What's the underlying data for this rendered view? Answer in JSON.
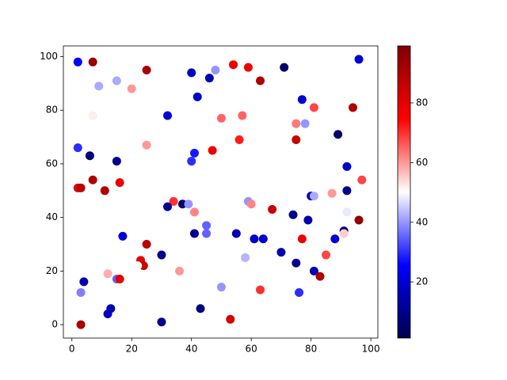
{
  "chart_data": {
    "type": "scatter",
    "colormap": "seismic",
    "x": [
      2,
      7,
      9,
      15,
      20,
      25,
      7,
      32,
      40,
      42,
      46,
      48,
      54,
      59,
      63,
      71,
      96,
      77,
      81,
      78,
      75,
      94,
      50,
      57,
      56,
      75,
      89,
      2,
      25,
      47,
      6,
      15,
      40,
      41,
      92,
      7,
      2,
      3,
      11,
      16,
      92,
      97,
      59,
      60,
      34,
      37,
      39,
      32,
      41,
      87,
      80,
      81,
      92,
      67,
      74,
      79,
      96,
      45,
      91,
      91,
      17,
      41,
      45,
      55,
      61,
      64,
      77,
      88,
      25,
      30,
      58,
      70,
      85,
      75,
      23,
      24,
      22,
      36,
      81,
      12,
      15,
      16,
      83,
      4,
      50,
      63,
      3,
      76,
      13,
      12,
      43,
      30,
      34,
      53,
      3
    ],
    "values": [
      98,
      98,
      89,
      91,
      88,
      95,
      78,
      78,
      94,
      85,
      92,
      95,
      97,
      96,
      91,
      96,
      99,
      84,
      81,
      75,
      75,
      81,
      77,
      78,
      69,
      69,
      71,
      66,
      67,
      65,
      63,
      61,
      61,
      64,
      59,
      54,
      51,
      51,
      50,
      53,
      50,
      54,
      46,
      45,
      46,
      45,
      45,
      44,
      42,
      49,
      48,
      48,
      42,
      43,
      41,
      39,
      39,
      37,
      35,
      34,
      33,
      34,
      34,
      34,
      32,
      32,
      32,
      32,
      30,
      26,
      25,
      27,
      26,
      23,
      24,
      22,
      22,
      20,
      20,
      19,
      17,
      17,
      18,
      16,
      14,
      13,
      12,
      12,
      6,
      4,
      6,
      1,
      2,
      2,
      0
    ],
    "color_values": [
      25,
      95,
      42,
      42,
      60,
      92,
      52,
      20,
      18,
      18,
      15,
      40,
      78,
      78,
      90,
      5,
      20,
      20,
      68,
      40,
      63,
      90,
      65,
      65,
      72,
      85,
      5,
      30,
      60,
      78,
      7,
      10,
      30,
      28,
      18,
      90,
      80,
      88,
      90,
      78,
      10,
      68,
      40,
      62,
      70,
      5,
      40,
      10,
      62,
      60,
      18,
      42,
      48,
      85,
      10,
      15,
      95,
      35,
      8,
      55,
      20,
      10,
      35,
      15,
      18,
      18,
      78,
      20,
      88,
      10,
      43,
      15,
      68,
      10,
      80,
      85,
      50,
      60,
      15,
      58,
      35,
      80,
      90,
      15,
      40,
      70,
      38,
      30,
      15,
      17,
      8,
      10,
      50,
      82,
      92
    ],
    "xlim": [
      -2.85,
      102.35
    ],
    "ylim": [
      -5,
      104
    ],
    "xticks": [
      0,
      20,
      40,
      60,
      80,
      100
    ],
    "yticks": [
      0,
      20,
      40,
      60,
      80,
      100
    ],
    "clim": [
      1.2,
      99.1
    ],
    "cticks": [
      20,
      40,
      60,
      80
    ]
  }
}
